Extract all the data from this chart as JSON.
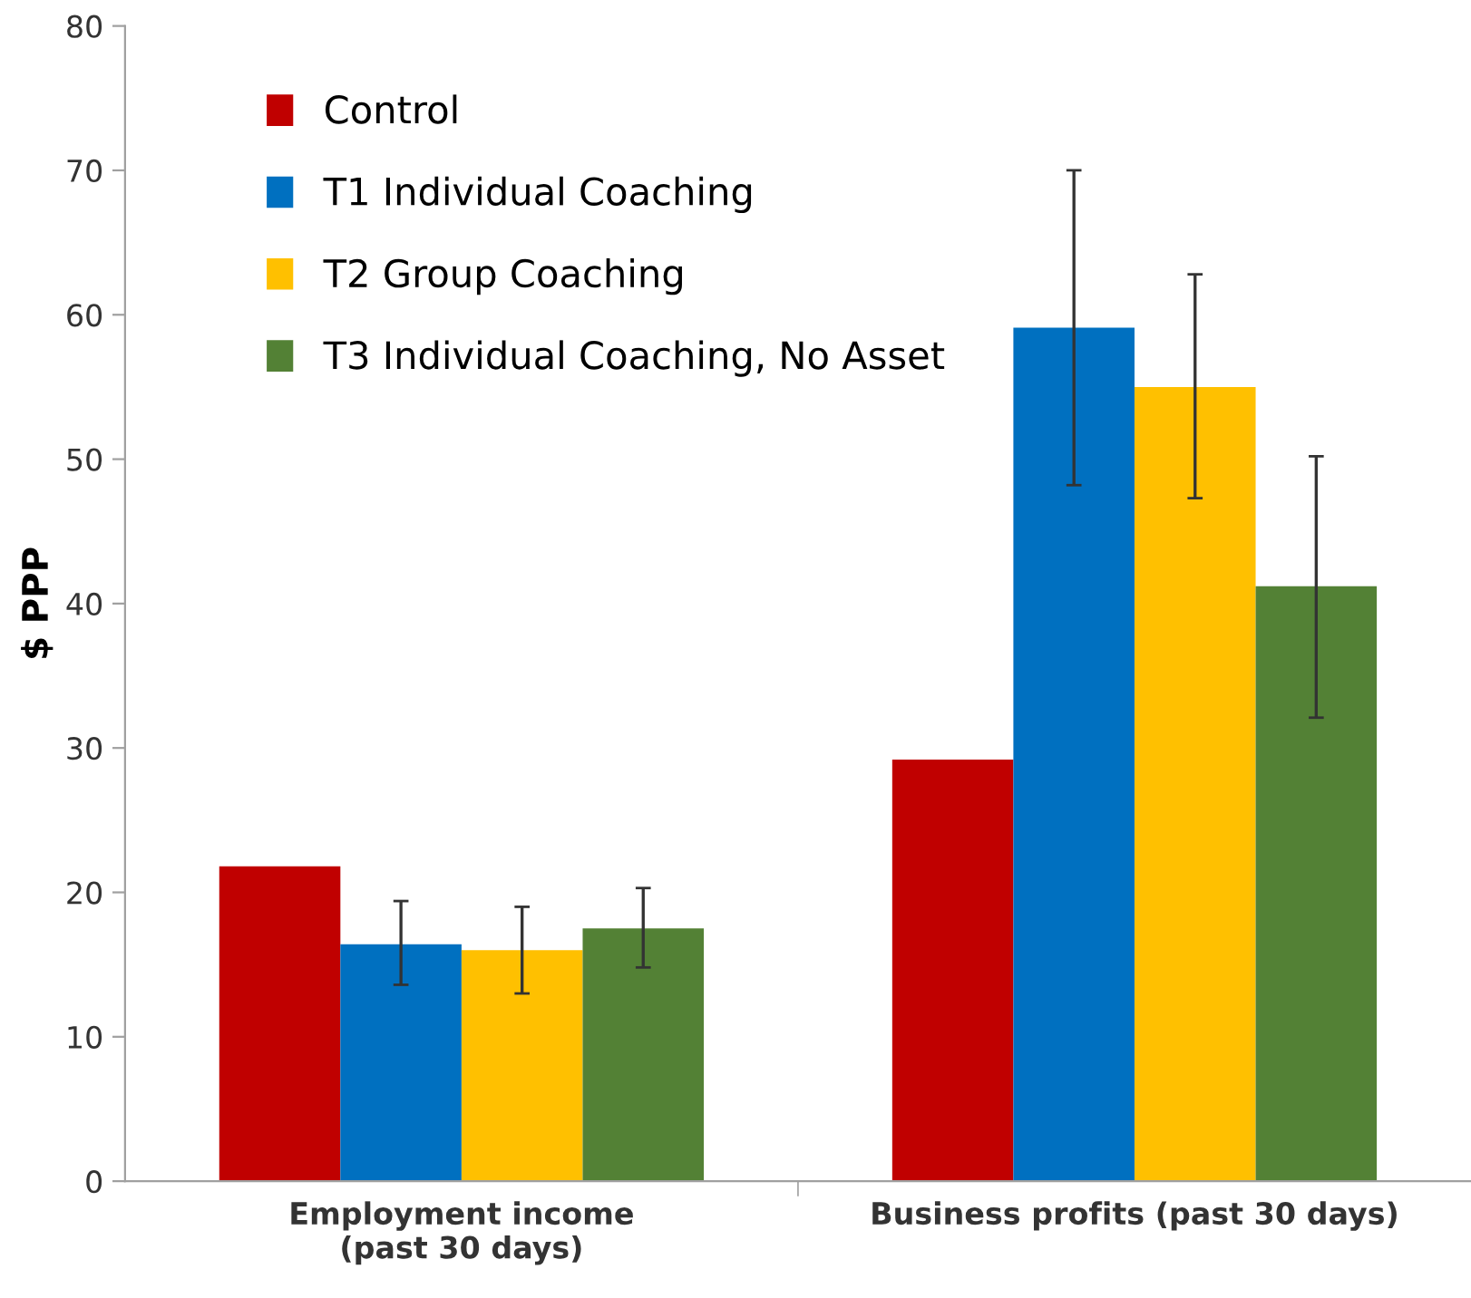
{
  "chart_data": {
    "type": "bar",
    "ylabel": "$ PPP",
    "categories": [
      "Employment income\n(past 30 days)",
      "Business profits (past 30 days)"
    ],
    "series": [
      {
        "name": "Control",
        "color": "#c00000",
        "values": [
          21.8,
          29.2
        ],
        "errors": [
          null,
          null
        ]
      },
      {
        "name": "T1 Individual Coaching",
        "color": "#0070c0",
        "values": [
          16.4,
          59.1
        ],
        "errors": [
          [
            13.6,
            19.4
          ],
          [
            48.2,
            70.0
          ]
        ]
      },
      {
        "name": "T2 Group Coaching",
        "color": "#ffc000",
        "values": [
          16.0,
          55.0
        ],
        "errors": [
          [
            13.0,
            19.0
          ],
          [
            47.3,
            62.8
          ]
        ]
      },
      {
        "name": "T3 Individual Coaching, No Asset",
        "color": "#538135",
        "values": [
          17.5,
          41.2
        ],
        "errors": [
          [
            14.8,
            20.3
          ],
          [
            32.1,
            50.2
          ]
        ]
      }
    ],
    "ylim": [
      0,
      80
    ],
    "yticks": [
      0,
      10,
      20,
      30,
      40,
      50,
      60,
      70,
      80
    ],
    "grid": false,
    "legend": "top left"
  }
}
